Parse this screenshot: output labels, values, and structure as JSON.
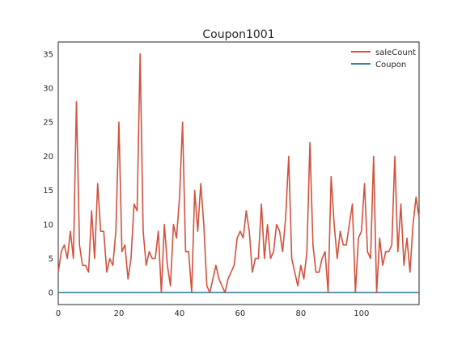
{
  "chart_data": {
    "type": "line",
    "title": "Coupon1001",
    "xlabel": "",
    "ylabel": "",
    "xlim": [
      0,
      119
    ],
    "ylim": [
      -1.75,
      36.75
    ],
    "xticks": [
      "0",
      "20",
      "40",
      "60",
      "80",
      "100"
    ],
    "yticks": [
      "0",
      "5",
      "10",
      "15",
      "20",
      "25",
      "30",
      "35"
    ],
    "grid": false,
    "legend": "top-right",
    "series": [
      {
        "name": "saleCount",
        "color": "#d2513c",
        "values": [
          3,
          6,
          7,
          5,
          9,
          5,
          28,
          7,
          4,
          4,
          3,
          12,
          5,
          16,
          9,
          9,
          3,
          5,
          4,
          9,
          25,
          6,
          7,
          2,
          5,
          13,
          12,
          35,
          9,
          4,
          6,
          5,
          5,
          9,
          0,
          10,
          4,
          1,
          10,
          8,
          14,
          25,
          6,
          6,
          0,
          15,
          9,
          16,
          10,
          1,
          0,
          2,
          4,
          2,
          1,
          0,
          2,
          3,
          4,
          8,
          9,
          8,
          12,
          9,
          3,
          5,
          5,
          13,
          5,
          10,
          5,
          6,
          10,
          9,
          6,
          11,
          20,
          5,
          3,
          1,
          4,
          2,
          6,
          22,
          7,
          3,
          3,
          5,
          6,
          0,
          17,
          10,
          5,
          9,
          7,
          7,
          10,
          13,
          0,
          8,
          9,
          16,
          6,
          5,
          20,
          0,
          8,
          4,
          6,
          6,
          7,
          20,
          6,
          13,
          4,
          8,
          3,
          10,
          14,
          11
        ]
      },
      {
        "name": "Coupon",
        "color": "#3a7fa5",
        "values": [
          0,
          0,
          0,
          0,
          0,
          0,
          0,
          0,
          0,
          0,
          0,
          0,
          0,
          0,
          0,
          0,
          0,
          0,
          0,
          0,
          0,
          0,
          0,
          0,
          0,
          0,
          0,
          0,
          0,
          0,
          0,
          0,
          0,
          0,
          0,
          0,
          0,
          0,
          0,
          0,
          0,
          0,
          0,
          0,
          0,
          0,
          0,
          0,
          0,
          0,
          0,
          0,
          0,
          0,
          0,
          0,
          0,
          0,
          0,
          0,
          0,
          0,
          0,
          0,
          0,
          0,
          0,
          0,
          0,
          0,
          0,
          0,
          0,
          0,
          0,
          0,
          0,
          0,
          0,
          0,
          0,
          0,
          0,
          0,
          0,
          0,
          0,
          0,
          0,
          0,
          0,
          0,
          0,
          0,
          0,
          0,
          0,
          0,
          0,
          0,
          0,
          0,
          0,
          0,
          0,
          0,
          0,
          0,
          0,
          0,
          0,
          0,
          0,
          0,
          0,
          0,
          0,
          0,
          0,
          0
        ]
      }
    ]
  }
}
